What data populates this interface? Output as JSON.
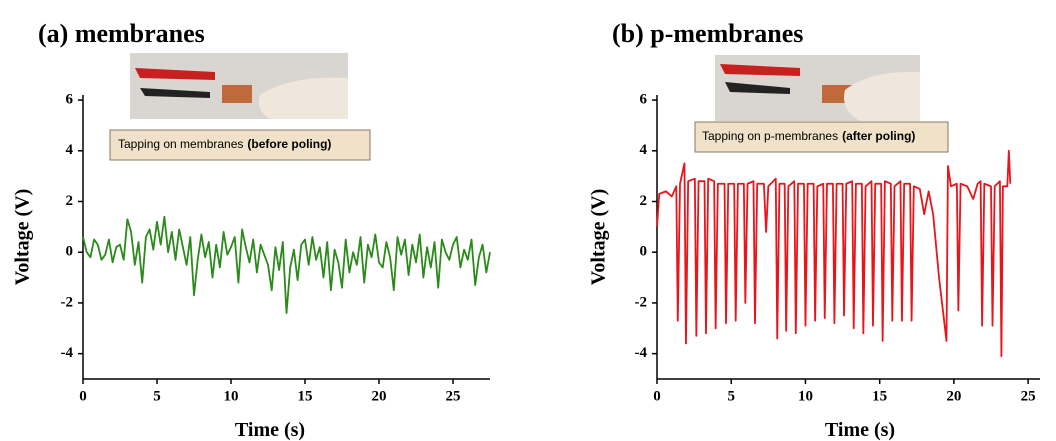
{
  "chart_data": [
    {
      "type": "line",
      "title": "(a) membranes",
      "xlabel": "Time (s)",
      "ylabel": "Voltage (V)",
      "caption": [
        "Tapping on membranes",
        "(before poling)"
      ],
      "color": "#2a8a1a",
      "xlim": [
        0,
        27.5
      ],
      "ylim": [
        -5,
        6.2
      ],
      "xticks": [
        0,
        5,
        10,
        15,
        20,
        25
      ],
      "yticks": [
        -4,
        -2,
        0,
        2,
        4,
        6
      ],
      "x": [
        0,
        0.25,
        0.5,
        0.75,
        1,
        1.25,
        1.5,
        1.75,
        2,
        2.25,
        2.5,
        2.75,
        3,
        3.25,
        3.5,
        3.75,
        4,
        4.25,
        4.5,
        4.75,
        5,
        5.25,
        5.5,
        5.75,
        6,
        6.25,
        6.5,
        6.75,
        7,
        7.25,
        7.5,
        7.75,
        8,
        8.25,
        8.5,
        8.75,
        9,
        9.25,
        9.5,
        9.75,
        10,
        10.25,
        10.5,
        10.75,
        11,
        11.25,
        11.5,
        11.75,
        12,
        12.25,
        12.5,
        12.75,
        13,
        13.25,
        13.5,
        13.75,
        14,
        14.25,
        14.5,
        14.75,
        15,
        15.25,
        15.5,
        15.75,
        16,
        16.25,
        16.5,
        16.75,
        17,
        17.25,
        17.5,
        17.75,
        18,
        18.25,
        18.5,
        18.75,
        19,
        19.25,
        19.5,
        19.75,
        20,
        20.25,
        20.5,
        20.75,
        21,
        21.25,
        21.5,
        21.75,
        22,
        22.25,
        22.5,
        22.75,
        23,
        23.25,
        23.5,
        23.75,
        24,
        24.25,
        24.5,
        24.75,
        25,
        25.25,
        25.5,
        25.75,
        26,
        26.25,
        26.5,
        26.75,
        27,
        27.25,
        27.5
      ],
      "values": [
        0.6,
        0.0,
        -0.2,
        0.5,
        0.3,
        -0.3,
        -0.1,
        0.5,
        -0.4,
        0.2,
        0.3,
        -0.3,
        1.3,
        0.8,
        -0.5,
        0.4,
        -1.2,
        0.6,
        0.9,
        0.1,
        1.2,
        0.3,
        1.4,
        0.0,
        0.8,
        -0.3,
        0.9,
        0.2,
        -0.5,
        0.6,
        -1.7,
        -0.3,
        0.7,
        -0.2,
        0.4,
        -1.0,
        0.3,
        -0.6,
        0.8,
        -0.1,
        0.2,
        0.6,
        -1.2,
        0.9,
        0.2,
        -0.4,
        0.5,
        -0.8,
        0.3,
        -0.1,
        -0.5,
        -1.5,
        0.2,
        -0.7,
        0.4,
        -2.4,
        -0.6,
        0.1,
        -1.1,
        0.3,
        0.5,
        -0.5,
        0.6,
        -0.3,
        0.2,
        -1.0,
        0.4,
        -1.5,
        0.1,
        -0.4,
        -1.4,
        0.5,
        -0.8,
        0.0,
        -0.5,
        0.6,
        -1.2,
        0.3,
        -0.2,
        0.7,
        -0.4,
        -0.6,
        0.4,
        -0.2,
        -1.5,
        0.6,
        -0.1,
        0.5,
        -0.9,
        0.3,
        -0.4,
        0.7,
        -1.0,
        0.2,
        -0.6,
        0.4,
        -1.4,
        0.5,
        0.0,
        -0.3,
        0.3,
        0.6,
        -0.6,
        0.1,
        -0.3,
        0.5,
        -1.3,
        -0.2,
        0.3,
        -0.8,
        0.0
      ]
    },
    {
      "type": "line",
      "title": "(b) p-membranes",
      "xlabel": "Time (s)",
      "ylabel": "Voltage (V)",
      "caption": [
        "Tapping on p-membranes",
        "(after poling)"
      ],
      "color": "#e8151b",
      "xlim": [
        0,
        25.8
      ],
      "ylim": [
        -5,
        6.2
      ],
      "xticks": [
        0,
        5,
        10,
        15,
        20,
        25
      ],
      "yticks": [
        -4,
        -2,
        0,
        2,
        4,
        6
      ],
      "x": [
        0,
        0.15,
        0.6,
        1.0,
        1.3,
        1.4,
        1.55,
        1.85,
        1.95,
        2.1,
        2.55,
        2.65,
        2.8,
        3.2,
        3.3,
        3.45,
        3.85,
        3.95,
        4.1,
        4.55,
        4.65,
        4.8,
        5.2,
        5.3,
        5.45,
        5.85,
        5.95,
        6.1,
        6.5,
        6.6,
        6.75,
        7.2,
        7.35,
        7.5,
        8.0,
        8.1,
        8.25,
        8.6,
        8.7,
        8.85,
        9.25,
        9.35,
        9.5,
        9.9,
        10.0,
        10.15,
        10.55,
        10.65,
        10.8,
        11.2,
        11.3,
        11.45,
        11.85,
        11.95,
        12.1,
        12.5,
        12.6,
        12.75,
        13.15,
        13.25,
        13.4,
        13.8,
        13.9,
        14.05,
        14.45,
        14.55,
        14.7,
        15.1,
        15.2,
        15.35,
        15.75,
        15.85,
        16.0,
        16.4,
        16.5,
        16.65,
        17.05,
        17.15,
        17.3,
        17.7,
        18.0,
        18.3,
        18.6,
        19.0,
        19.3,
        19.5,
        19.6,
        19.8,
        20.2,
        20.3,
        20.45,
        20.9,
        21.3,
        21.6,
        21.8,
        21.9,
        22.05,
        22.5,
        22.6,
        22.75,
        23.1,
        23.2,
        23.3,
        23.6,
        23.7,
        23.8
      ],
      "values": [
        1.0,
        2.3,
        2.4,
        2.2,
        2.6,
        -2.7,
        2.7,
        3.5,
        -3.6,
        2.8,
        2.9,
        -3.3,
        2.8,
        2.8,
        -3.2,
        2.9,
        2.8,
        -3.0,
        2.7,
        2.7,
        -2.8,
        2.7,
        2.7,
        -2.7,
        2.7,
        2.7,
        -2.0,
        2.7,
        2.8,
        -2.8,
        2.7,
        2.7,
        0.8,
        2.6,
        2.9,
        -3.4,
        2.7,
        2.7,
        -3.1,
        2.6,
        2.8,
        -3.2,
        2.7,
        2.7,
        -2.9,
        2.7,
        2.7,
        -2.7,
        2.6,
        2.7,
        -2.6,
        2.7,
        2.7,
        -2.8,
        2.7,
        2.7,
        -2.5,
        2.7,
        2.8,
        -3.0,
        2.7,
        2.7,
        -3.2,
        2.6,
        2.8,
        -2.9,
        2.7,
        2.7,
        -3.5,
        2.8,
        2.7,
        -2.7,
        2.6,
        2.8,
        -2.7,
        2.7,
        2.7,
        -2.7,
        2.6,
        2.5,
        1.5,
        2.4,
        1.5,
        -1.0,
        -2.5,
        -3.5,
        3.4,
        2.6,
        2.7,
        -2.3,
        2.7,
        2.6,
        2.1,
        2.7,
        2.8,
        -2.9,
        2.7,
        2.6,
        -2.9,
        2.6,
        2.8,
        -4.1,
        2.6,
        2.6,
        4.0,
        2.7
      ]
    }
  ]
}
